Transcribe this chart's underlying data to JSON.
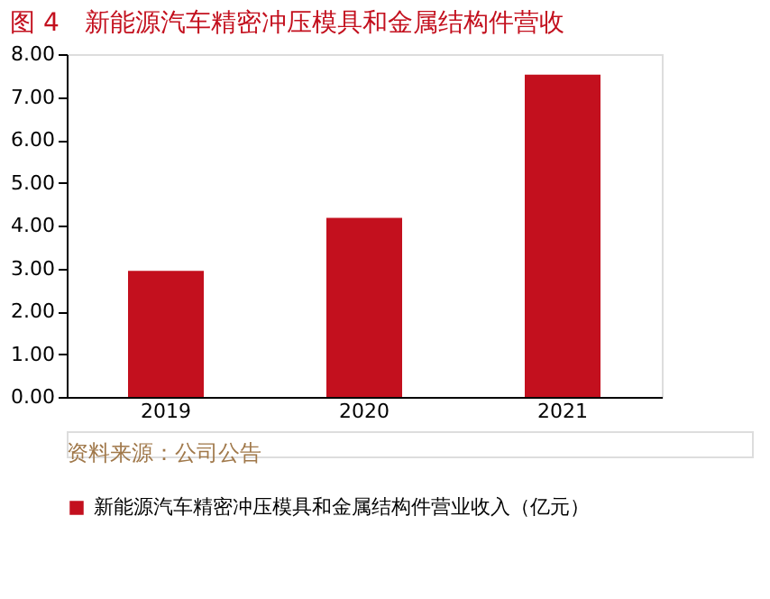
{
  "chart_data": {
    "type": "bar",
    "title": "图 4　新能源汽车精密冲压模具和金属结构件营收",
    "categories": [
      "2019",
      "2020",
      "2021"
    ],
    "series": [
      {
        "name": "新能源汽车精密冲压模具和金属结构件营业收入（亿元）",
        "color": "#c3101e",
        "values": [
          2.94,
          4.18,
          7.52
        ]
      }
    ],
    "ylim": [
      0,
      8
    ],
    "yticks": [
      {
        "value": 0,
        "label": "0.00"
      },
      {
        "value": 1,
        "label": "1.00"
      },
      {
        "value": 2,
        "label": "2.00"
      },
      {
        "value": 3,
        "label": "3.00"
      },
      {
        "value": 4,
        "label": "4.00"
      },
      {
        "value": 5,
        "label": "5.00"
      },
      {
        "value": 6,
        "label": "6.00"
      },
      {
        "value": 7,
        "label": "7.00"
      },
      {
        "value": 8,
        "label": "8.00"
      }
    ],
    "grid": false,
    "legend": "bottom",
    "annotations": [
      "资料来源：公司公告"
    ]
  }
}
